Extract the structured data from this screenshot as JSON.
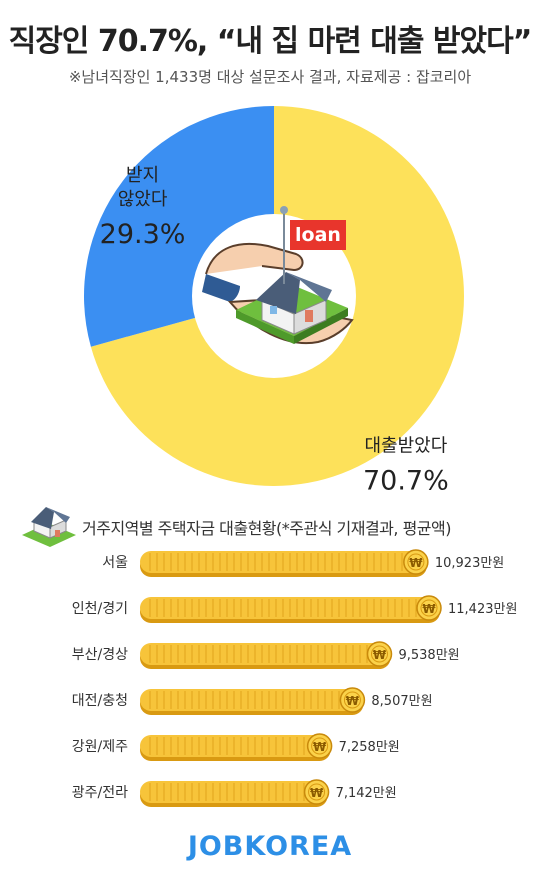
{
  "header": {
    "title": "직장인 70.7%, “내 집 마련 대출 받았다”",
    "subtitle": "※남녀직장인 1,433명 대상 설문조사 결과, 자료제공 : 잡코리아"
  },
  "badge": {
    "loan_label": "loan"
  },
  "bars_header": {
    "label": "거주지역별 주택자금 대출현황(*주관식 기재결과, 평균액)"
  },
  "footer": {
    "logo": "JOBKOREA"
  },
  "colors": {
    "yellow": "#fde15a",
    "blue": "#3b8ff2",
    "coin": "#f7c43a",
    "coin_dark": "#d99a12",
    "logo": "#2d8fe6",
    "loan_red": "#e8352c"
  },
  "icons": [
    "house-icon",
    "hand-icon",
    "loan-flag-icon",
    "coin-icon"
  ],
  "chart_data": [
    {
      "type": "pie",
      "style": "donut",
      "labels": [
        "대출받았다",
        "받지 않았다"
      ],
      "values": [
        70.7,
        29.3
      ],
      "value_labels": [
        "70.7%",
        "29.3%"
      ],
      "label_lines": [
        [
          "대출받았다"
        ],
        [
          "받지",
          "않았다"
        ]
      ],
      "colors": [
        "#fde15a",
        "#3b8ff2"
      ]
    },
    {
      "type": "bar",
      "orientation": "horizontal",
      "title": "거주지역별 주택자금 대출현황(*주관식 기재결과, 평균액)",
      "categories": [
        "서울",
        "인천/경기",
        "부산/경상",
        "대전/충청",
        "강원/제주",
        "광주/전라"
      ],
      "values": [
        10923,
        11423,
        9538,
        8507,
        7258,
        7142
      ],
      "value_labels": [
        "10,923만원",
        "11,423만원",
        "9,538만원",
        "8,507만원",
        "7,258만원",
        "7,142만원"
      ],
      "unit": "만원",
      "xlim": [
        0,
        11423
      ]
    }
  ]
}
